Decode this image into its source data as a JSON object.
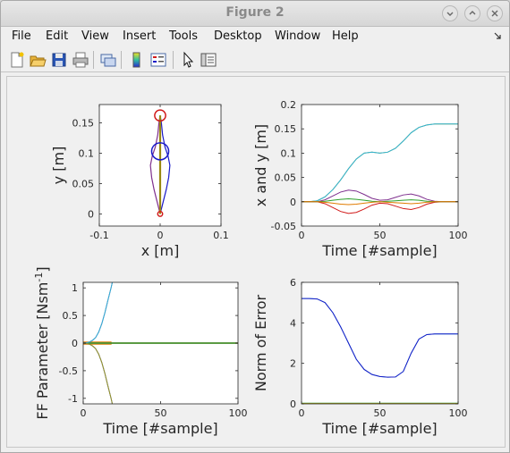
{
  "window": {
    "title": "Figure 2"
  },
  "menu": [
    "File",
    "Edit",
    "View",
    "Insert",
    "Tools",
    "Desktop",
    "Window",
    "Help"
  ],
  "toolbar": {
    "icons": [
      "new-figure-icon",
      "open-file-icon",
      "save-icon",
      "print-icon",
      "link-icon",
      "colorbar-icon",
      "legend-icon",
      "pointer-icon",
      "property-editor-icon"
    ]
  },
  "colors": {
    "red": "#d11a1a",
    "blue": "#1a1ac8",
    "green": "#2ca02c",
    "orange": "#e07b00",
    "purple": "#7e2f8e",
    "cyan": "#2fb4d8",
    "olive": "#9a9a20"
  },
  "chart_data": [
    {
      "type": "line",
      "xlabel": "x [m]",
      "ylabel": "y [m]",
      "xlim": [
        -0.1,
        0.1
      ],
      "ylim": [
        -0.02,
        0.18
      ],
      "xticks": [
        -0.1,
        0,
        0.1
      ],
      "xtick_labels": [
        "-0.1",
        "0",
        "0.1"
      ],
      "yticks": [
        0,
        0.05,
        0.1,
        0.15
      ],
      "ytick_labels": [
        "0",
        "0.05",
        "0.1",
        "0.15"
      ],
      "circles": [
        {
          "x": 0,
          "y": 0.162,
          "r": 0.009,
          "color": "red"
        },
        {
          "x": 0,
          "y": 0.103,
          "r": 0.014,
          "color": "blue"
        },
        {
          "x": 0,
          "y": 0.0,
          "r": 0.004,
          "color": "red"
        }
      ],
      "left_curve": {
        "y": [
          0.0,
          0.02,
          0.04,
          0.06,
          0.08,
          0.095,
          0.11,
          0.13,
          0.15,
          0.162
        ],
        "x": [
          0.0,
          -0.005,
          -0.01,
          -0.014,
          -0.016,
          -0.013,
          -0.008,
          -0.004,
          -0.002,
          0.0
        ]
      },
      "right_curve": {
        "y": [
          0.0,
          0.02,
          0.04,
          0.06,
          0.08,
          0.095,
          0.11,
          0.13,
          0.15,
          0.162
        ],
        "x": [
          0.0,
          0.005,
          0.01,
          0.014,
          0.016,
          0.013,
          0.008,
          0.004,
          0.002,
          0.0
        ]
      },
      "center_line": {
        "x": [
          0,
          0
        ],
        "y": [
          0.0,
          0.162
        ]
      }
    },
    {
      "type": "line",
      "xlabel": "Time [#sample]",
      "ylabel": "x and y [m]",
      "xlim": [
        0,
        100
      ],
      "ylim": [
        -0.05,
        0.2
      ],
      "xticks": [
        0,
        50,
        100
      ],
      "xtick_labels": [
        "0",
        "50",
        "100"
      ],
      "yticks": [
        -0.05,
        0,
        0.05,
        0.1,
        0.15,
        0.2
      ],
      "ytick_labels": [
        "-0.05",
        "0",
        "0.05",
        "0.1",
        "0.15",
        "0.2"
      ],
      "x": [
        0,
        5,
        10,
        15,
        20,
        25,
        30,
        35,
        40,
        45,
        50,
        55,
        60,
        65,
        70,
        75,
        80,
        85,
        90,
        95,
        100
      ],
      "series": [
        {
          "color": "olive",
          "values": [
            0,
            0,
            0.002,
            0.01,
            0.025,
            0.045,
            0.068,
            0.088,
            0.1,
            0.102,
            0.1,
            0.102,
            0.11,
            0.125,
            0.142,
            0.153,
            0.158,
            0.16,
            0.16,
            0.16,
            0.16
          ]
        },
        {
          "color": "cyan",
          "values": [
            0,
            0,
            0.002,
            0.01,
            0.025,
            0.045,
            0.068,
            0.088,
            0.1,
            0.102,
            0.1,
            0.102,
            0.11,
            0.125,
            0.142,
            0.153,
            0.158,
            0.16,
            0.16,
            0.16,
            0.16
          ]
        },
        {
          "color": "purple",
          "values": [
            0,
            0,
            0,
            0.004,
            0.012,
            0.02,
            0.024,
            0.022,
            0.015,
            0.007,
            0.003,
            0.004,
            0.009,
            0.014,
            0.016,
            0.012,
            0.005,
            0.001,
            0,
            0,
            0
          ]
        },
        {
          "color": "red",
          "values": [
            0,
            0,
            0,
            -0.004,
            -0.012,
            -0.02,
            -0.024,
            -0.022,
            -0.015,
            -0.007,
            -0.003,
            -0.004,
            -0.009,
            -0.014,
            -0.016,
            -0.012,
            -0.005,
            -0.001,
            0,
            0,
            0
          ]
        },
        {
          "color": "green",
          "values": [
            0,
            0,
            0,
            0.001,
            0.003,
            0.005,
            0.006,
            0.005,
            0.003,
            0.001,
            0,
            0.001,
            0.002,
            0.003,
            0.004,
            0.003,
            0.001,
            0,
            0,
            0,
            0
          ]
        },
        {
          "color": "orange",
          "values": [
            0,
            0,
            0,
            -0.001,
            -0.003,
            -0.005,
            -0.006,
            -0.005,
            -0.003,
            -0.001,
            0,
            -0.001,
            -0.002,
            -0.003,
            -0.004,
            -0.003,
            -0.001,
            0,
            0,
            0,
            0
          ]
        }
      ]
    },
    {
      "type": "line",
      "xlabel": "Time [#sample]",
      "ylabel": "FF Parameter [Nsm",
      "ylabel_sup": "-1",
      "ylabel_end": "]",
      "xlim": [
        0,
        100
      ],
      "ylim": [
        -1.1,
        1.1
      ],
      "xticks": [
        0,
        50,
        100
      ],
      "xtick_labels": [
        "0",
        "50",
        "100"
      ],
      "yticks": [
        -1,
        -0.5,
        0,
        0.5,
        1
      ],
      "ytick_labels": [
        "-1",
        "-0.5",
        "0",
        "0.5",
        "1"
      ],
      "x": [
        0,
        2,
        4,
        6,
        8,
        10,
        12,
        14,
        16,
        18,
        20
      ],
      "series": [
        {
          "color": "purple",
          "values": [
            0,
            0.005,
            0.02,
            0.05,
            0.1,
            0.2,
            0.35,
            0.55,
            0.78,
            1.0,
            1.25
          ]
        },
        {
          "color": "cyan",
          "values": [
            0,
            0.005,
            0.02,
            0.05,
            0.1,
            0.2,
            0.35,
            0.55,
            0.78,
            1.0,
            1.25
          ]
        },
        {
          "color": "blue",
          "values": [
            0,
            -0.005,
            -0.02,
            -0.05,
            -0.1,
            -0.2,
            -0.35,
            -0.55,
            -0.78,
            -1.0,
            -1.25
          ]
        },
        {
          "color": "olive",
          "values": [
            0,
            -0.005,
            -0.02,
            -0.05,
            -0.1,
            -0.2,
            -0.35,
            -0.55,
            -0.78,
            -1.0,
            -1.25
          ]
        }
      ],
      "flat_series": [
        {
          "color": "red",
          "x": [
            0,
            100
          ],
          "values": [
            0,
            0
          ]
        },
        {
          "color": "green",
          "x": [
            0,
            100
          ],
          "values": [
            0,
            0
          ]
        }
      ],
      "band": {
        "color": "orange",
        "x": [
          0,
          18
        ],
        "values": [
          0.02,
          -0.02
        ]
      }
    },
    {
      "type": "line",
      "xlabel": "Time [#sample]",
      "ylabel": "Norm of Error",
      "xlim": [
        0,
        100
      ],
      "ylim": [
        0,
        6
      ],
      "xticks": [
        0,
        50,
        100
      ],
      "xtick_labels": [
        "0",
        "50",
        "100"
      ],
      "yticks": [
        0,
        2,
        4,
        6
      ],
      "ytick_labels": [
        "0",
        "2",
        "4",
        "6"
      ],
      "x": [
        0,
        5,
        10,
        15,
        20,
        25,
        30,
        35,
        40,
        45,
        50,
        55,
        60,
        65,
        70,
        75,
        80,
        85,
        90,
        95,
        100
      ],
      "series": [
        {
          "color": "cyan",
          "values": [
            5.2,
            5.2,
            5.18,
            5.0,
            4.5,
            3.8,
            3.0,
            2.2,
            1.7,
            1.45,
            1.35,
            1.32,
            1.33,
            1.6,
            2.5,
            3.2,
            3.42,
            3.45,
            3.45,
            3.45,
            3.45
          ]
        },
        {
          "color": "blue",
          "values": [
            5.2,
            5.2,
            5.18,
            5.0,
            4.5,
            3.8,
            3.0,
            2.2,
            1.7,
            1.45,
            1.35,
            1.32,
            1.33,
            1.6,
            2.5,
            3.2,
            3.42,
            3.45,
            3.45,
            3.45,
            3.45
          ]
        }
      ],
      "flat_series": [
        {
          "color": "green",
          "x": [
            0,
            100
          ],
          "values": [
            0.02,
            0.02
          ]
        },
        {
          "color": "olive",
          "x": [
            0,
            100
          ],
          "values": [
            0.01,
            0.01
          ]
        }
      ]
    }
  ]
}
